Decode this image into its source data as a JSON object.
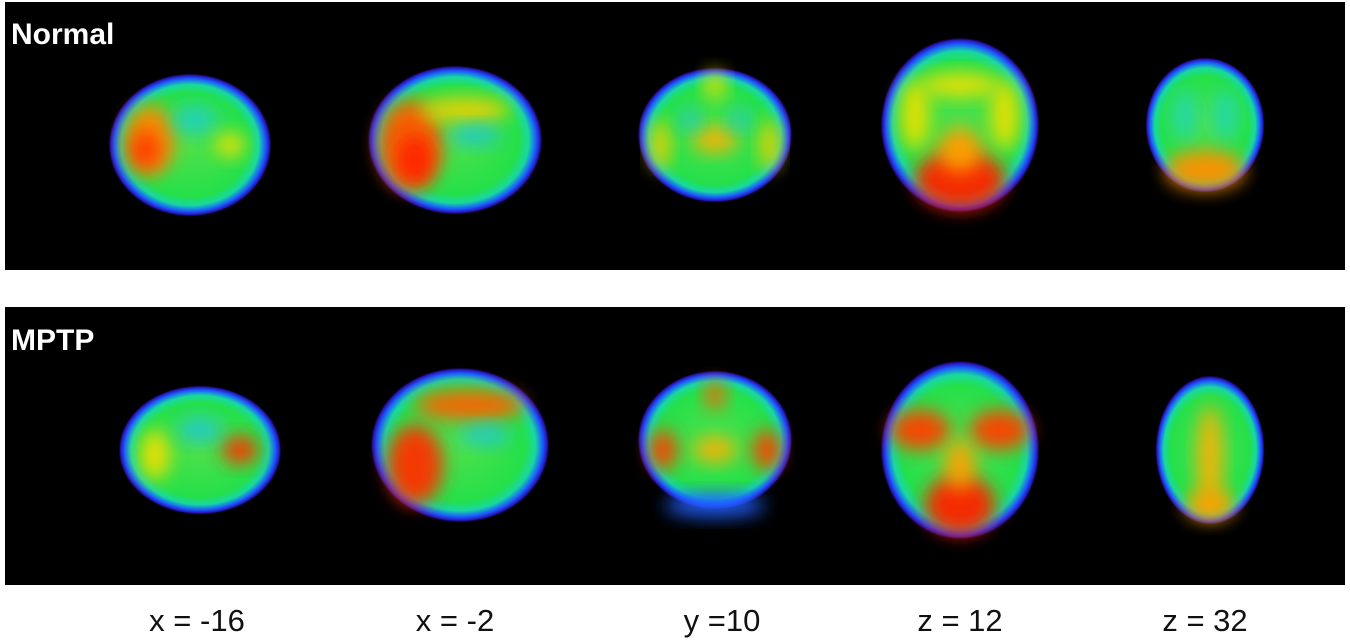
{
  "panels": [
    {
      "label": "Normal"
    },
    {
      "label": "MPTP"
    }
  ],
  "slices": [
    "x = -16",
    "x = -2",
    "y =10",
    "z = 12",
    "z = 32"
  ]
}
